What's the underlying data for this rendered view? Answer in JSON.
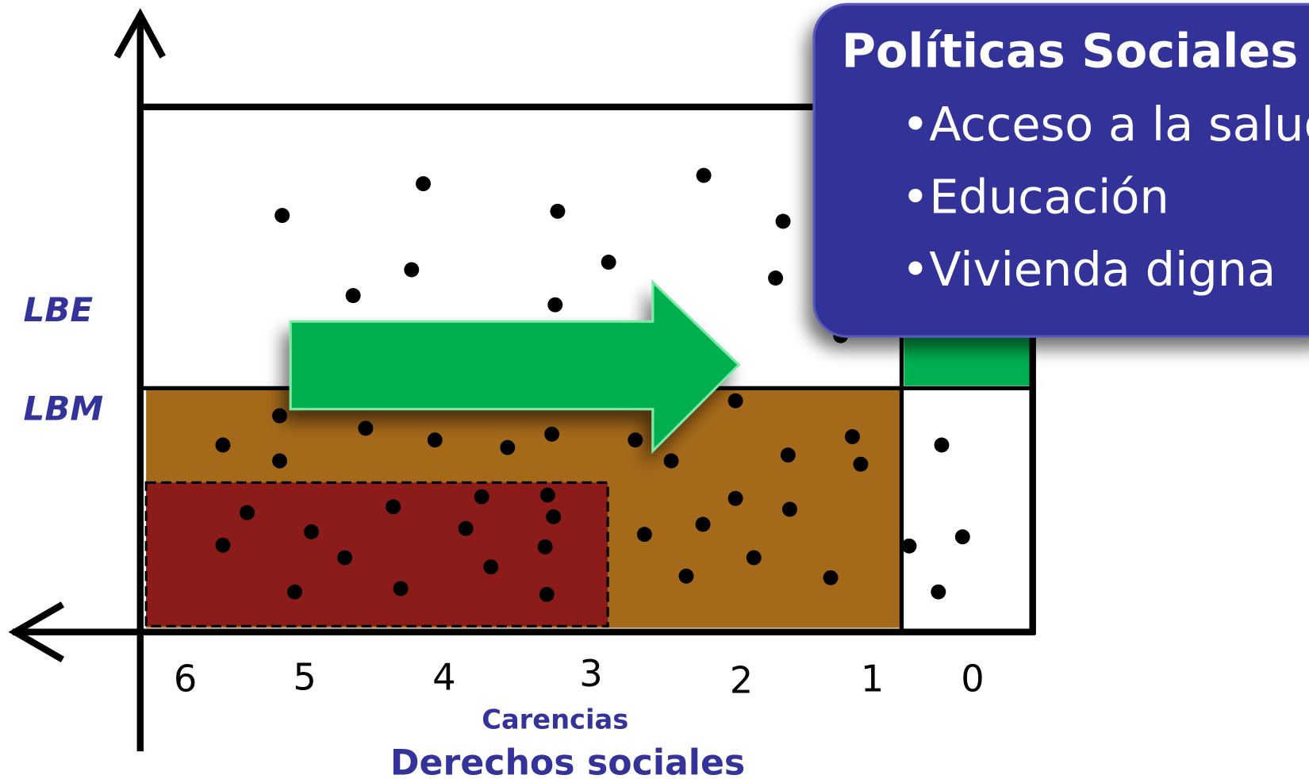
{
  "labels": {
    "lbe": "LBE",
    "lbm": "LBM"
  },
  "x_axis": {
    "ticks": [
      "6",
      "5",
      "4",
      "3",
      "2",
      "1",
      "0"
    ],
    "label": "Carencias",
    "title": "Derechos sociales"
  },
  "callout": {
    "title": "Políticas Sociales",
    "items": [
      "•Acceso a la salud",
      "•Educación",
      "•Vivienda digna"
    ]
  }
}
